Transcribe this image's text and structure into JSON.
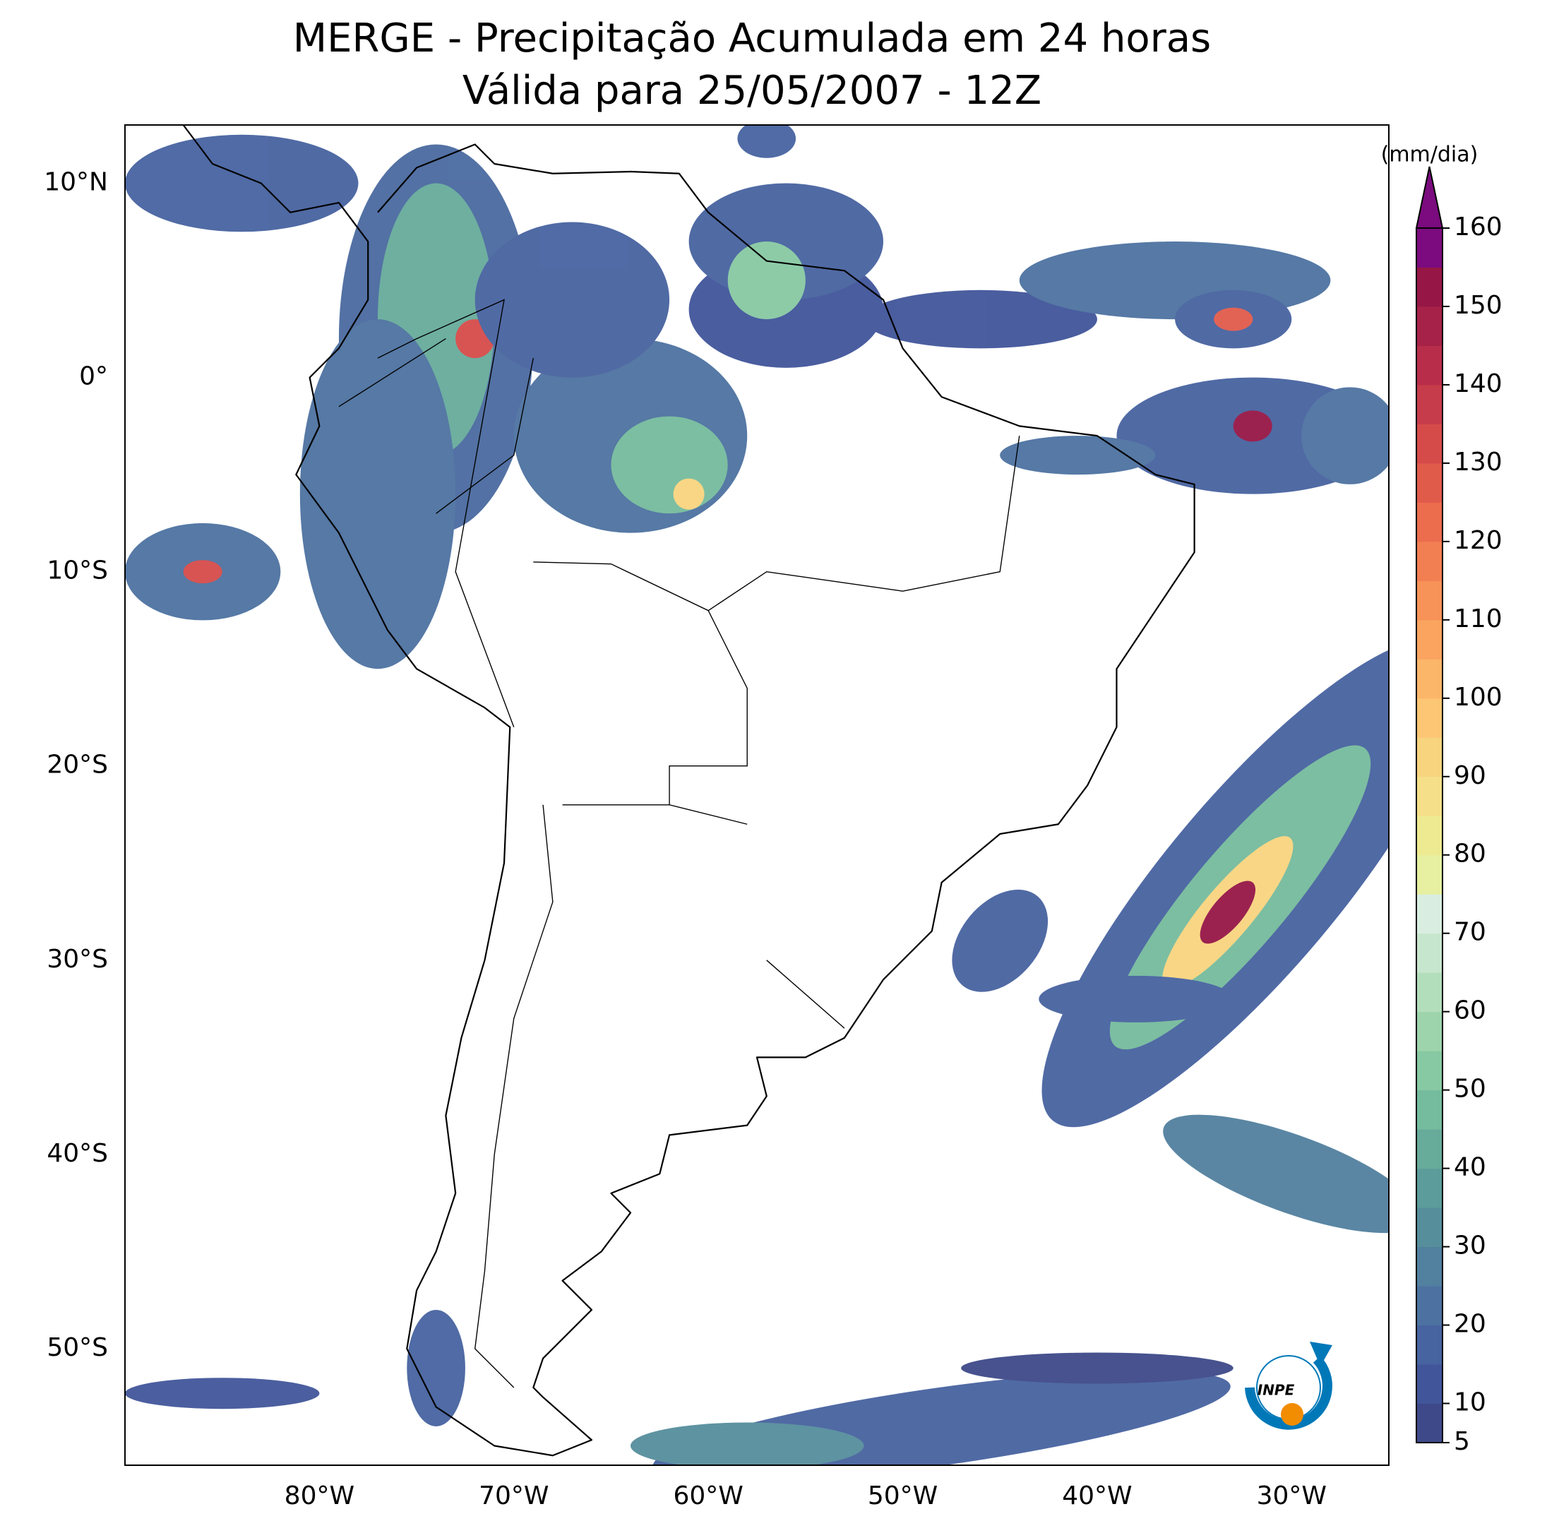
{
  "chart_data": {
    "type": "map",
    "title": "MERGE - Precipitação Acumulada em 24 horas",
    "subtitle": "Válida para 25/05/2007 - 12Z",
    "xlim": [
      -90,
      -25
    ],
    "ylim": [
      -56,
      13
    ],
    "xticks": [
      {
        "value": -80,
        "label": "80°W"
      },
      {
        "value": -70,
        "label": "70°W"
      },
      {
        "value": -60,
        "label": "60°W"
      },
      {
        "value": -50,
        "label": "50°W"
      },
      {
        "value": -40,
        "label": "40°W"
      },
      {
        "value": -30,
        "label": "30°W"
      }
    ],
    "yticks": [
      {
        "value": 10,
        "label": "10°N"
      },
      {
        "value": 0,
        "label": "0°"
      },
      {
        "value": -10,
        "label": "10°S"
      },
      {
        "value": -20,
        "label": "20°S"
      },
      {
        "value": -30,
        "label": "30°S"
      },
      {
        "value": -40,
        "label": "40°S"
      },
      {
        "value": -50,
        "label": "50°S"
      }
    ],
    "colorbar": {
      "label": "(mm/dia)",
      "lim": [
        5,
        160
      ],
      "ticks": [
        5,
        10,
        20,
        30,
        40,
        50,
        60,
        70,
        80,
        90,
        100,
        110,
        120,
        130,
        140,
        150,
        160
      ],
      "colors": [
        "#3e4989",
        "#41559a",
        "#4763a0",
        "#4d72a1",
        "#52809f",
        "#568e9c",
        "#5c9c9a",
        "#67ab9b",
        "#75bb9e",
        "#87c9a3",
        "#9dd4ac",
        "#b3debc",
        "#c7e6ce",
        "#d9eee0",
        "#e6f0a0",
        "#eeea92",
        "#f5e089",
        "#f9d47f",
        "#fcc674",
        "#fcb66a",
        "#faa460",
        "#f79258",
        "#f27f52",
        "#eb6d4e",
        "#e15b4b",
        "#d54b4a",
        "#c73c4a",
        "#b82e4a",
        "#a72248",
        "#961746",
        "#7b0b7e"
      ],
      "extend_color": "#7b0b7e"
    },
    "logo": "INPE"
  }
}
